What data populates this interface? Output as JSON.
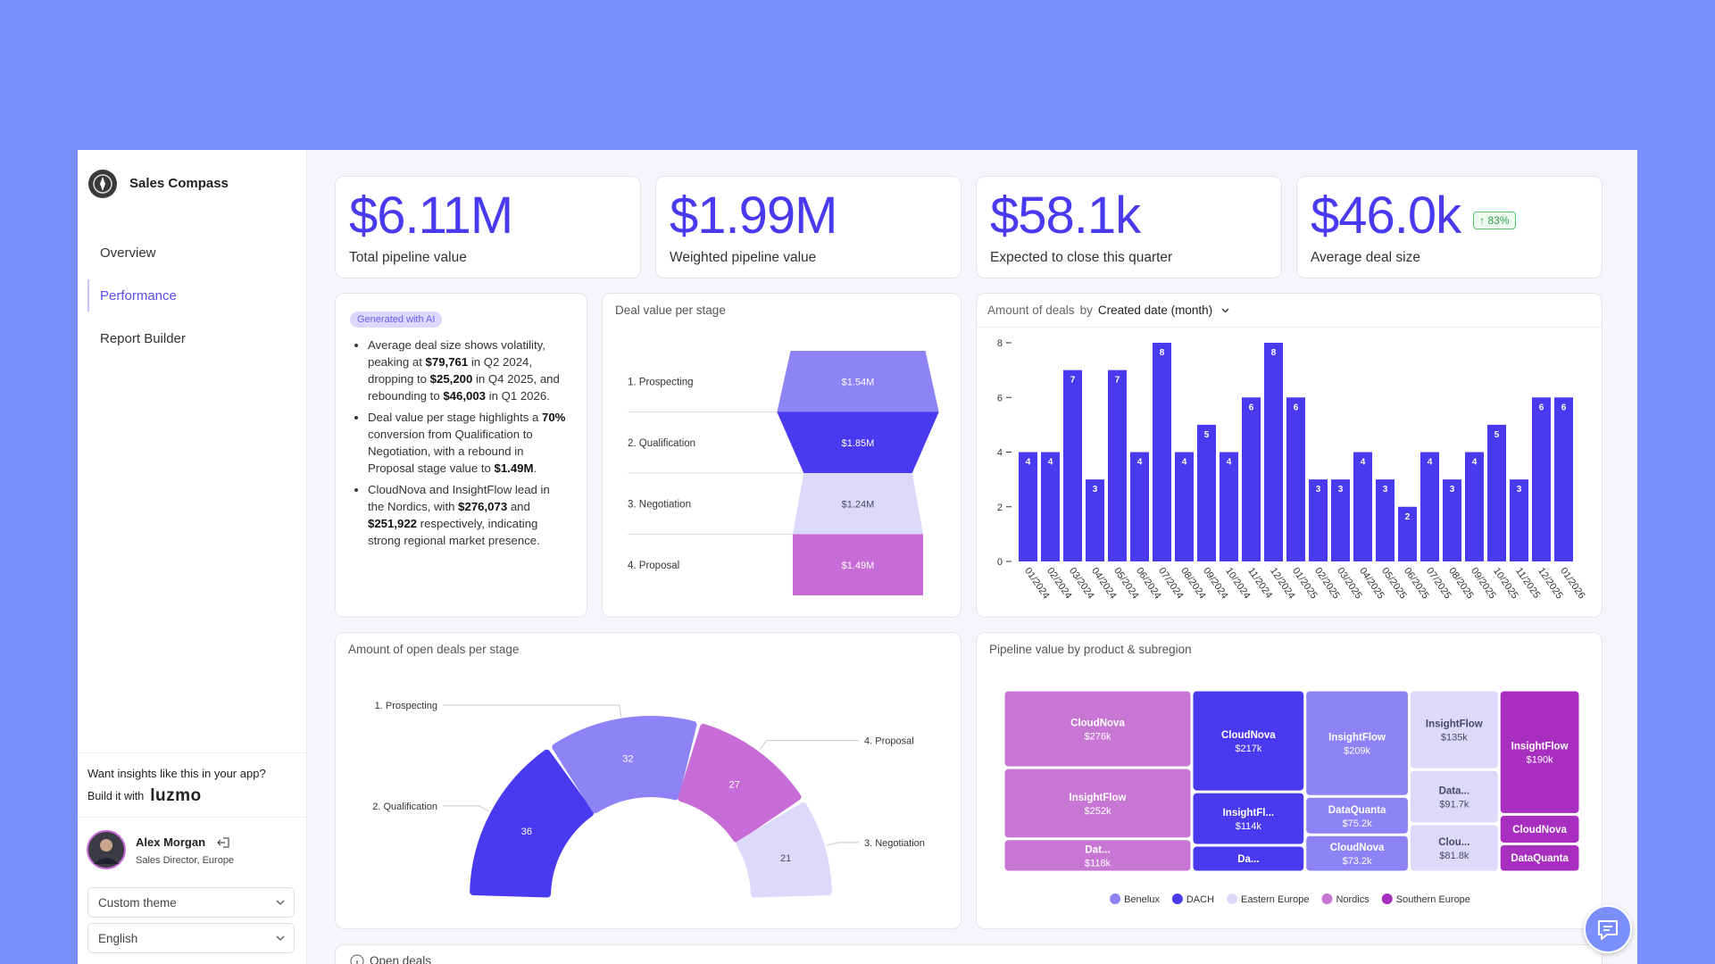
{
  "sidebar": {
    "brand": "Sales Compass",
    "nav": [
      "Overview",
      "Performance",
      "Report Builder"
    ],
    "active_nav": 1,
    "promo": "Want insights like this in your app?",
    "promo_build": "Build it with",
    "promo_brand": "luzmo",
    "user_name": "Alex Morgan",
    "user_role": "Sales Director, Europe",
    "theme": "Custom theme",
    "language": "English"
  },
  "kpis": [
    {
      "value": "$6.11M",
      "label": "Total pipeline value"
    },
    {
      "value": "$1.99M",
      "label": "Weighted pipeline value"
    },
    {
      "value": "$58.1k",
      "label": "Expected to close this quarter"
    },
    {
      "value": "$46.0k",
      "label": "Average deal size",
      "badge": "83%"
    }
  ],
  "insight": {
    "badge": "Generated with AI",
    "bullets": [
      [
        {
          "text": "Average deal size shows volatility, peaking at "
        },
        {
          "text": "$79,761",
          "bold": true
        },
        {
          "text": " in Q2 2024, dropping to "
        },
        {
          "text": "$25,200",
          "bold": true
        },
        {
          "text": " in Q4 2025, and rebounding to "
        },
        {
          "text": "$46,003",
          "bold": true
        },
        {
          "text": " in Q1 2026."
        }
      ],
      [
        {
          "text": "Deal value per stage highlights a "
        },
        {
          "text": "70%",
          "bold": true
        },
        {
          "text": " conversion from Qualification to Negotiation, with a rebound in Proposal stage value to "
        },
        {
          "text": "$1.49M",
          "bold": true
        },
        {
          "text": "."
        }
      ],
      [
        {
          "text": "CloudNova and InsightFlow lead in the Nordics, with "
        },
        {
          "text": "$276,073",
          "bold": true
        },
        {
          "text": " and "
        },
        {
          "text": "$251,922",
          "bold": true
        },
        {
          "text": " respectively, indicating strong regional market presence."
        }
      ]
    ]
  },
  "chart_data": [
    {
      "type": "funnel",
      "title": "Deal value per stage",
      "categories": [
        "1. Prospecting",
        "2. Qualification",
        "3. Negotiation",
        "4. Proposal"
      ],
      "values": [
        1.54,
        1.85,
        1.24,
        1.49
      ],
      "value_labels": [
        "$1.54M",
        "$1.85M",
        "$1.24M",
        "$1.49M"
      ],
      "colors": [
        "#8d82f6",
        "#4a3aef",
        "#dcd9fb",
        "#c76cd6"
      ]
    },
    {
      "type": "bar",
      "title": "Amount of deals",
      "group_by_label": "by",
      "group_by": "Created date (month)",
      "categories": [
        "01/2024",
        "02/2024",
        "03/2024",
        "04/2024",
        "05/2024",
        "06/2024",
        "07/2024",
        "08/2024",
        "09/2024",
        "10/2024",
        "11/2024",
        "12/2024",
        "01/2025",
        "02/2025",
        "03/2025",
        "04/2025",
        "05/2025",
        "06/2025",
        "07/2025",
        "08/2025",
        "09/2025",
        "10/2025",
        "11/2025",
        "12/2025",
        "01/2026"
      ],
      "values": [
        4,
        4,
        7,
        3,
        7,
        4,
        8,
        4,
        5,
        4,
        6,
        8,
        6,
        3,
        3,
        4,
        3,
        2,
        4,
        3,
        4,
        5,
        3,
        6,
        6
      ],
      "color": "#4a3aef",
      "ylim": [
        0,
        8
      ],
      "yticks": [
        0,
        2,
        4,
        6,
        8
      ]
    },
    {
      "type": "donut",
      "title": "Amount of open deals per stage",
      "categories": [
        "2. Qualification",
        "1. Prospecting",
        "4. Proposal",
        "3. Negotiation"
      ],
      "values": [
        36,
        32,
        27,
        21
      ],
      "colors": [
        "#4a3aef",
        "#8d82f6",
        "#c76cd6",
        "#dcd9fb"
      ]
    },
    {
      "type": "treemap",
      "title": "Pipeline value by product & subregion",
      "groups": [
        {
          "name": "Benelux",
          "color": "#8d82f6",
          "items": [
            {
              "label": "InsightFlow",
              "value": 209,
              "value_label": "$209k"
            },
            {
              "label": "DataQuanta",
              "value": 75.2,
              "value_label": "$75.2k"
            },
            {
              "label": "CloudNova",
              "value": 73.2,
              "value_label": "$73.2k"
            }
          ]
        },
        {
          "name": "DACH",
          "color": "#4a3aef",
          "items": [
            {
              "label": "CloudNova",
              "value": 217,
              "value_label": "$217k"
            },
            {
              "label": "InsightFl...",
              "value": 114,
              "value_label": "$114k"
            },
            {
              "label": "Da...",
              "value": 57
            }
          ]
        },
        {
          "name": "Eastern Europe",
          "color": "#dcd9fb",
          "items": [
            {
              "label": "InsightFlow",
              "value": 135,
              "value_label": "$135k"
            },
            {
              "label": "Data...",
              "value": 91.7,
              "value_label": "$91.7k"
            },
            {
              "label": "Clou...",
              "value": 81.8,
              "value_label": "$81.8k"
            }
          ]
        },
        {
          "name": "Nordics",
          "color": "#c776d4",
          "items": [
            {
              "label": "CloudNova",
              "value": 276,
              "value_label": "$276k"
            },
            {
              "label": "InsightFlow",
              "value": 252,
              "value_label": "$252k"
            },
            {
              "label": "Dat...",
              "value": 118,
              "value_label": "$118k"
            }
          ]
        },
        {
          "name": "Southern Europe",
          "color": "#a82ebf",
          "items": [
            {
              "label": "InsightFlow",
              "value": 190,
              "value_label": "$190k"
            },
            {
              "label": "CloudNova",
              "value": 45
            },
            {
              "label": "DataQuanta",
              "value": 43
            }
          ]
        }
      ]
    }
  ],
  "open_deals": {
    "title": "Open deals"
  }
}
